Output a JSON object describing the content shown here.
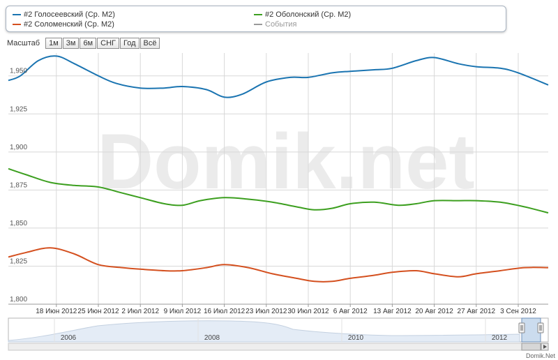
{
  "legend": {
    "items": [
      {
        "label": "#2 Голосеевский (Ср. М2)",
        "color": "#1a74b1",
        "muted": false
      },
      {
        "label": "#2 Соломенский (Ср. М2)",
        "color": "#d4501f",
        "muted": false
      },
      {
        "label": "#2 Оболонский (Ср. М2)",
        "color": "#3c9f1f",
        "muted": false
      },
      {
        "label": "События",
        "color": "#9a9a9a",
        "muted": true
      }
    ]
  },
  "zoom": {
    "label": "Масштаб",
    "buttons": [
      "1м",
      "3м",
      "6м",
      "СНГ",
      "Год",
      "Всё"
    ]
  },
  "watermark": "Domik.net",
  "brand": "Domik.Net",
  "chart_data": {
    "type": "line",
    "xlabel": "",
    "ylabel": "",
    "x_ticks": [
      "18 Июн 2012",
      "25 Июн 2012",
      "2 Июл 2012",
      "9 Июл 2012",
      "16 Июл 2012",
      "23 Июл 2012",
      "30 Июл 2012",
      "6 Авг 2012",
      "13 Авг 2012",
      "20 Авг 2012",
      "27 Авг 2012",
      "3 Сен 2012"
    ],
    "x_start": "2012-06-10",
    "x_end": "2012-09-08",
    "y_ticks": [
      1800,
      1825,
      1850,
      1875,
      1900,
      1925,
      1950
    ],
    "y_tick_labels": [
      "1,800",
      "1,825",
      "1,850",
      "1,875",
      "1,900",
      "1,925",
      "1,950"
    ],
    "ylim": [
      1800,
      1965
    ],
    "grid": true,
    "series": [
      {
        "name": "#2 Голосеевский (Ср. М2)",
        "color": "#1a74b1",
        "x": [
          "2012-06-10",
          "2012-06-12",
          "2012-06-15",
          "2012-06-18",
          "2012-06-21",
          "2012-06-25",
          "2012-06-28",
          "2012-07-02",
          "2012-07-06",
          "2012-07-09",
          "2012-07-13",
          "2012-07-16",
          "2012-07-19",
          "2012-07-23",
          "2012-07-27",
          "2012-07-30",
          "2012-08-03",
          "2012-08-06",
          "2012-08-10",
          "2012-08-13",
          "2012-08-17",
          "2012-08-20",
          "2012-08-24",
          "2012-08-27",
          "2012-08-31",
          "2012-09-03",
          "2012-09-08"
        ],
        "y": [
          1947,
          1950,
          1960,
          1963,
          1958,
          1950,
          1945,
          1942,
          1942,
          1943,
          1941,
          1936,
          1938,
          1946,
          1949,
          1949,
          1952,
          1953,
          1954,
          1955,
          1960,
          1962,
          1958,
          1956,
          1955,
          1952,
          1944
        ]
      },
      {
        "name": "#2 Оболонский (Ср. М2)",
        "color": "#3c9f1f",
        "x": [
          "2012-06-10",
          "2012-06-13",
          "2012-06-17",
          "2012-06-21",
          "2012-06-25",
          "2012-06-29",
          "2012-07-02",
          "2012-07-06",
          "2012-07-09",
          "2012-07-12",
          "2012-07-16",
          "2012-07-20",
          "2012-07-24",
          "2012-07-28",
          "2012-07-31",
          "2012-08-03",
          "2012-08-06",
          "2012-08-10",
          "2012-08-14",
          "2012-08-17",
          "2012-08-20",
          "2012-08-24",
          "2012-08-27",
          "2012-08-31",
          "2012-09-04",
          "2012-09-08"
        ],
        "y": [
          1889,
          1885,
          1880,
          1878,
          1877,
          1873,
          1870,
          1866,
          1865,
          1868,
          1870,
          1869,
          1867,
          1864,
          1862,
          1863,
          1866,
          1867,
          1865,
          1866,
          1868,
          1868,
          1868,
          1867,
          1864,
          1860
        ]
      },
      {
        "name": "#2 Соломенский (Ср. М2)",
        "color": "#d4501f",
        "x": [
          "2012-06-10",
          "2012-06-13",
          "2012-06-17",
          "2012-06-21",
          "2012-06-25",
          "2012-06-29",
          "2012-07-02",
          "2012-07-06",
          "2012-07-09",
          "2012-07-13",
          "2012-07-16",
          "2012-07-20",
          "2012-07-24",
          "2012-07-28",
          "2012-07-31",
          "2012-08-03",
          "2012-08-06",
          "2012-08-10",
          "2012-08-13",
          "2012-08-17",
          "2012-08-20",
          "2012-08-24",
          "2012-08-27",
          "2012-08-31",
          "2012-09-04",
          "2012-09-08"
        ],
        "y": [
          1831,
          1834,
          1837,
          1833,
          1826,
          1824,
          1823,
          1822,
          1822,
          1824,
          1826,
          1824,
          1820,
          1817,
          1815,
          1815,
          1817,
          1819,
          1821,
          1822,
          1820,
          1818,
          1820,
          1822,
          1824,
          1824
        ]
      }
    ],
    "navigator": {
      "ticks": [
        "2006",
        "2008",
        "2010",
        "2012"
      ]
    }
  }
}
